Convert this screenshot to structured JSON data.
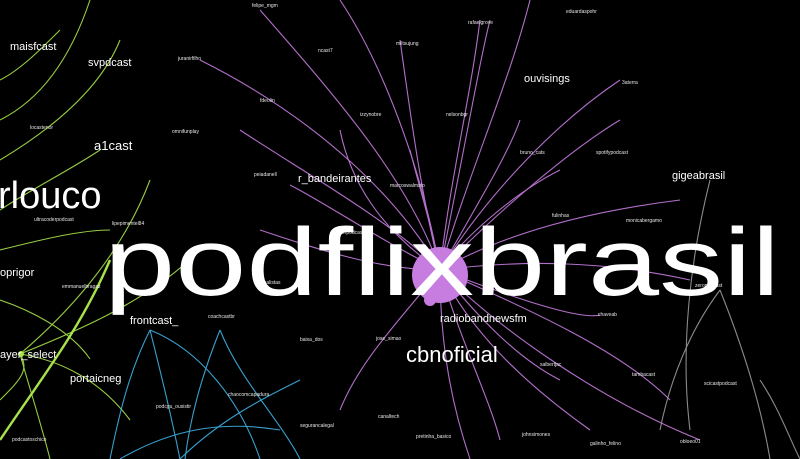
{
  "graph": {
    "colors": {
      "background": "#000000",
      "purple_cluster": "#c77ce0",
      "green_cluster": "#a7e34a",
      "blue_cluster": "#3fb3e6",
      "gray_cluster": "#9a9a9a",
      "label": "#ffffff"
    },
    "labels": {
      "podflixbrasil": "podflixbrasil",
      "rlouco": "rlouco",
      "cbnoficial": "cbnoficial",
      "radiobandnewsfm": "radiobandnewsfm",
      "a1cast": "a1cast",
      "oprigor": "oprigor",
      "ayer_select": "ayer_select",
      "r_bandeirantes": "r_bandeirantes",
      "ouvisings": "ouvisings",
      "frontcast": "frontcast_",
      "portaicneg": "portaicneg",
      "gigeabrasil": "gigeabrasil",
      "svpdcast": "svpdcast",
      "maisfcast": "maisfcast",
      "podcastoschico": "podcastoschico",
      "coachcastbr": "coachcastbr",
      "tambacast": "tambacast",
      "monicabergamo": "monicabergamo",
      "scicastpodcast": "scicastpodcast",
      "obloeo01": "obloeo01",
      "canaltech": "canaltech",
      "pretinha_basico": "pretinha_basico",
      "segurancalegal": "segurancalegal",
      "galinho_felino": "galinho_felino",
      "salbertjac": "salbertjac",
      "jose_simao": "jose_simao",
      "baixa_dos": "baixa_dos",
      "johnsimones": "johnsimones",
      "chaocomcapadura": "chaocomcapadura",
      "podcgu_ousistir": "podcgu_ousistir",
      "felipe_mgm": "felipe_mgm",
      "rafaelgrove": "rafaelgrove",
      "eduardaspohr": "eduardaspohr",
      "juranirfilho": "juranirfilho",
      "ncast7": "ncast7",
      "miltsujung": "miltsujung",
      "ss_terra": "3aterra",
      "fdeolin": "fdeolin",
      "izzynobre": "izzynobre",
      "nelsonbgr": "nelsonbgr",
      "bruno_cats": "bruno_cats",
      "spotifypodcast": "spotifypodcast",
      "omnifunplay": "omnifunplay",
      "locastenor": "locastenor",
      "peiadanell": "peiadanell",
      "marcoswalmsto": "marcoswalmsto",
      "ultracoderpodcast": "ultracoderpodcast",
      "lipepimentel84": "lipepimentel84",
      "joerpodcast": "joerpodcast",
      "emmanuelbragaz": "emmanuelbragaz",
      "jornalistas": "jornalistas",
      "fulinhas": "fulinhas",
      "chaveab": "chaveab",
      "zeropodcast": "zeropodcast"
    }
  }
}
